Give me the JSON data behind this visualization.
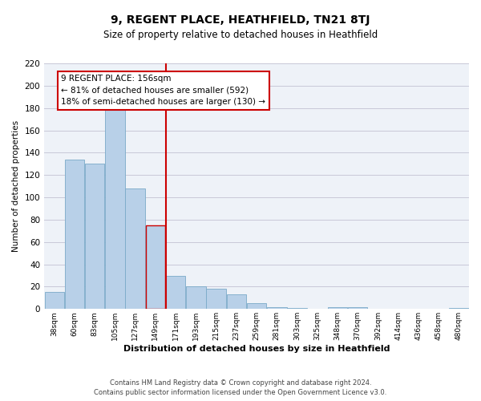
{
  "title": "9, REGENT PLACE, HEATHFIELD, TN21 8TJ",
  "subtitle": "Size of property relative to detached houses in Heathfield",
  "xlabel": "Distribution of detached houses by size in Heathfield",
  "ylabel": "Number of detached properties",
  "footer_line1": "Contains HM Land Registry data © Crown copyright and database right 2024.",
  "footer_line2": "Contains public sector information licensed under the Open Government Licence v3.0.",
  "bar_labels": [
    "38sqm",
    "60sqm",
    "83sqm",
    "105sqm",
    "127sqm",
    "149sqm",
    "171sqm",
    "193sqm",
    "215sqm",
    "237sqm",
    "259sqm",
    "281sqm",
    "303sqm",
    "325sqm",
    "348sqm",
    "370sqm",
    "392sqm",
    "414sqm",
    "436sqm",
    "458sqm",
    "480sqm"
  ],
  "bar_values": [
    15,
    134,
    130,
    184,
    108,
    75,
    30,
    20,
    18,
    13,
    5,
    2,
    1,
    0,
    2,
    2,
    0,
    0,
    0,
    0,
    1
  ],
  "bar_color": "#b8d0e8",
  "bar_edge_color": "#7aaac8",
  "highlight_bar_index": 5,
  "highlight_bar_color": "#b8d0e8",
  "highlight_bar_edge_color": "#cc0000",
  "vline_color": "#cc0000",
  "annotation_line1": "9 REGENT PLACE: 156sqm",
  "annotation_line2": "← 81% of detached houses are smaller (592)",
  "annotation_line3": "18% of semi-detached houses are larger (130) →",
  "annotation_box_color": "#cc0000",
  "ylim": [
    0,
    220
  ],
  "yticks": [
    0,
    20,
    40,
    60,
    80,
    100,
    120,
    140,
    160,
    180,
    200,
    220
  ],
  "grid_color": "#c8c8d8",
  "bg_color": "#eef2f8",
  "title_fontsize": 10,
  "subtitle_fontsize": 8.5
}
